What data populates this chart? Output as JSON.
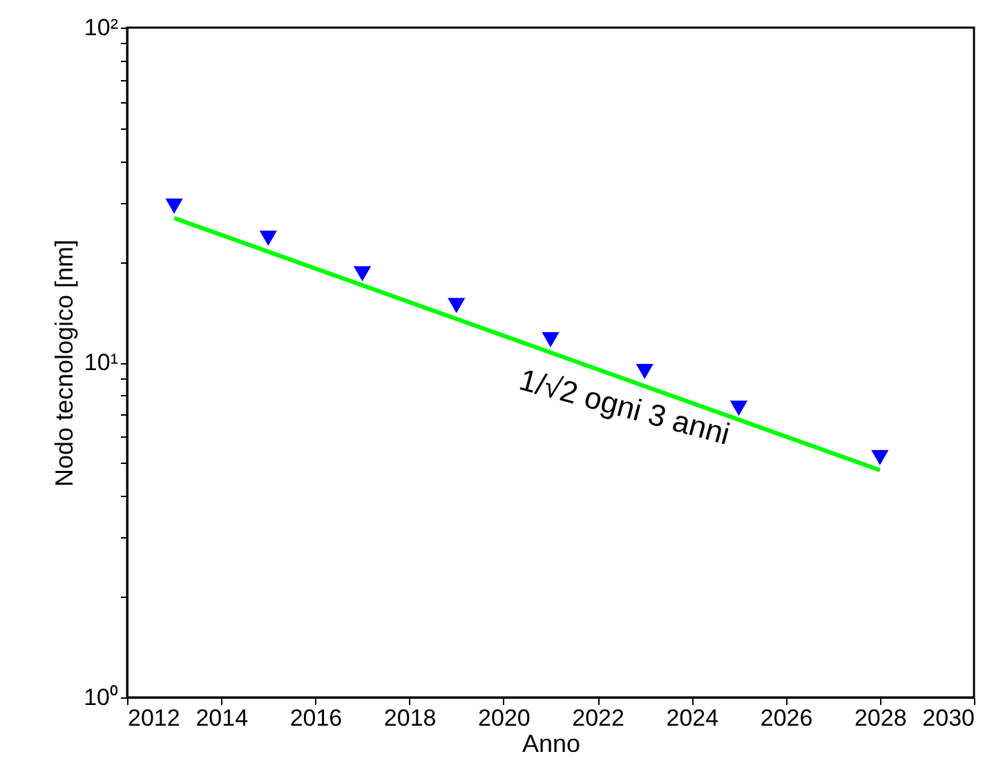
{
  "chart_data": {
    "type": "scatter",
    "xlabel": "Anno",
    "ylabel": "Nodo tecnologico [nm]",
    "log": "y",
    "grid": false,
    "xlim": [
      2012,
      2030
    ],
    "xticks": [
      2012,
      2014,
      2016,
      2018,
      2020,
      2022,
      2024,
      2026,
      2028,
      2030
    ],
    "ylim": [
      1,
      100
    ],
    "yticks": [
      {
        "value": 1,
        "label": "10⁰"
      },
      {
        "value": 2,
        "label": null
      },
      {
        "value": 3,
        "label": null
      },
      {
        "value": 4,
        "label": null
      },
      {
        "value": 5,
        "label": null
      },
      {
        "value": 6,
        "label": null
      },
      {
        "value": 7,
        "label": null
      },
      {
        "value": 8,
        "label": null
      },
      {
        "value": 9,
        "label": null
      },
      {
        "value": 10,
        "label": "10¹"
      },
      {
        "value": 20,
        "label": null
      },
      {
        "value": 30,
        "label": null
      },
      {
        "value": 40,
        "label": null
      },
      {
        "value": 50,
        "label": null
      },
      {
        "value": 60,
        "label": null
      },
      {
        "value": 70,
        "label": null
      },
      {
        "value": 80,
        "label": null
      },
      {
        "value": 90,
        "label": null
      },
      {
        "value": 100,
        "label": "10²"
      }
    ],
    "series": [
      {
        "marker": "triangle",
        "color": "#0000ff",
        "x": [
          2013,
          2015,
          2017,
          2019,
          2021,
          2023,
          2025,
          2028
        ],
        "values": [
          29.3,
          23.5,
          18.4,
          14.8,
          11.7,
          9.4,
          7.3,
          5.2
        ]
      },
      {
        "type": "line",
        "marker": "none",
        "line_style": "solid",
        "color": "#00ff00",
        "x": [
          2013,
          2028
        ],
        "values": [
          27,
          4.77
        ]
      }
    ],
    "annotations": [
      "1/√2 ogni 3 anni"
    ]
  }
}
